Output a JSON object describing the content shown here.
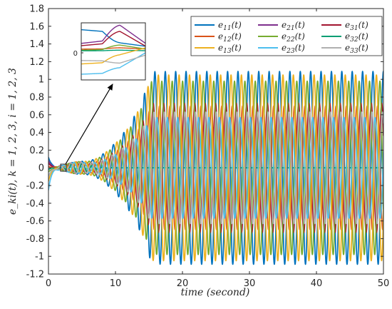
{
  "chart_data": {
    "type": "line",
    "title": "",
    "xlabel": "time (second)",
    "ylabel": "e_ki(t), k = 1, 2, 3, i = 1, 2, 3",
    "xlim": [
      0,
      50
    ],
    "ylim": [
      -1.2,
      1.8
    ],
    "xticks": [
      0,
      10,
      20,
      30,
      40,
      50
    ],
    "yticks": [
      -1.2,
      -1,
      -0.8,
      -0.6,
      -0.4,
      -0.2,
      0,
      0.2,
      0.4,
      0.6,
      0.8,
      1,
      1.2,
      1.4,
      1.6,
      1.8
    ],
    "grid": false,
    "legend_position": "top-right",
    "legend_columns": 3,
    "oscillation_period": 1.55,
    "series": [
      {
        "name": "e11(t)",
        "base": "e",
        "sub": "11",
        "color": "#0072BD",
        "initial": 0.12,
        "amplitude": 1.09,
        "center": 0.0,
        "phase": 0.0,
        "growth_start": 2.0,
        "saturation_time": 17.0,
        "mode": "oscillating"
      },
      {
        "name": "e21(t)",
        "base": "e",
        "sub": "21",
        "color": "#7E2F8E",
        "initial": 0.08,
        "amplitude": 0.0,
        "center": 0.0,
        "phase": 0.0,
        "growth_start": 2.0,
        "saturation_time": 10.0,
        "mode": "decaying"
      },
      {
        "name": "e31(t)",
        "base": "e",
        "sub": "31",
        "color": "#A2142F",
        "initial": 0.05,
        "amplitude": 0.73,
        "center": 0.0,
        "phase": 1.0,
        "growth_start": 2.0,
        "saturation_time": 17.0,
        "mode": "oscillating"
      },
      {
        "name": "e12(t)",
        "base": "e",
        "sub": "12",
        "color": "#D95319",
        "initial": 0.02,
        "amplitude": 0.7,
        "center": 0.0,
        "phase": 3.5,
        "growth_start": 2.0,
        "saturation_time": 17.0,
        "mode": "oscillating"
      },
      {
        "name": "e22(t)",
        "base": "e",
        "sub": "22",
        "color": "#77AC30",
        "initial": -0.05,
        "amplitude": 0.98,
        "center": 0.0,
        "phase": 2.1,
        "growth_start": 2.0,
        "saturation_time": 17.0,
        "mode": "oscillating"
      },
      {
        "name": "e32(t)",
        "base": "e",
        "sub": "32",
        "color": "#009E73",
        "initial": -0.02,
        "amplitude": 0.0,
        "center": 0.0,
        "phase": 0.0,
        "growth_start": 2.0,
        "saturation_time": 10.0,
        "mode": "decaying"
      },
      {
        "name": "e13(t)",
        "base": "e",
        "sub": "13",
        "color": "#EDB120",
        "initial": -0.15,
        "amplitude": 1.05,
        "center": 0.0,
        "phase": 4.2,
        "growth_start": 2.0,
        "saturation_time": 17.0,
        "mode": "oscillating"
      },
      {
        "name": "e23(t)",
        "base": "e",
        "sub": "23",
        "color": "#4DBEEE",
        "initial": -0.25,
        "amplitude": 0.57,
        "center": 0.0,
        "phase": 5.0,
        "growth_start": 2.0,
        "saturation_time": 17.0,
        "mode": "oscillating"
      },
      {
        "name": "e33(t)",
        "base": "e",
        "sub": "33",
        "color": "#B0B0B0",
        "initial": -0.1,
        "amplitude": 0.63,
        "center": 0.0,
        "phase": 0.6,
        "growth_start": 2.0,
        "saturation_time": 17.0,
        "mode": "oscillating"
      }
    ],
    "inset": {
      "zoom_x": [
        1.5,
        2.2
      ],
      "zoom_y": [
        -0.05,
        0.05
      ],
      "tick_label": "0"
    }
  }
}
